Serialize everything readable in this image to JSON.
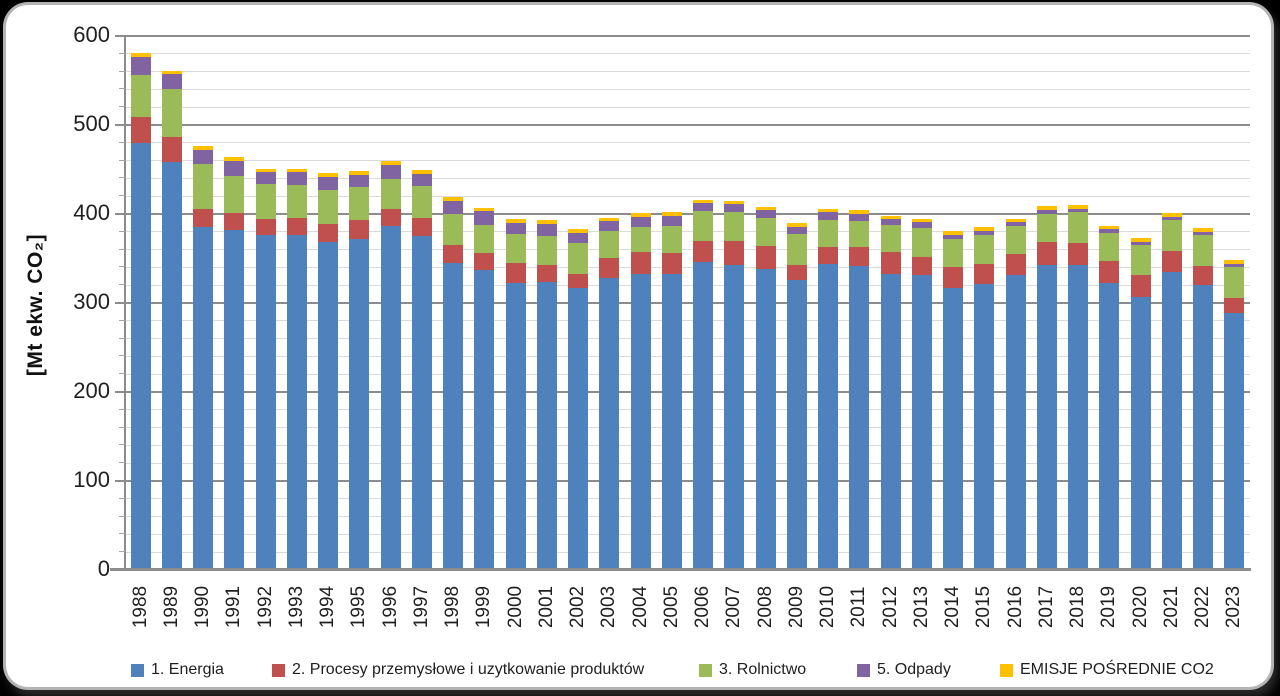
{
  "page": {
    "background_color": "#000000",
    "card_background_color": "#FFFFFF"
  },
  "chart_data": {
    "type": "bar",
    "subtype": "stacked-column",
    "title": "",
    "ylabel": "[Mt ekw. CO₂]",
    "xlabel": "",
    "ylim": [
      0,
      600
    ],
    "ytick_major": 100,
    "ytick_minor": 20,
    "grid": "on",
    "legend_position": "bottom",
    "y_tick_labels": [
      "0",
      "100",
      "200",
      "300",
      "400",
      "500",
      "600"
    ],
    "categories": [
      1988,
      1989,
      1990,
      1991,
      1992,
      1993,
      1994,
      1995,
      1996,
      1997,
      1998,
      1999,
      2000,
      2001,
      2002,
      2003,
      2004,
      2005,
      2006,
      2007,
      2008,
      2009,
      2010,
      2011,
      2012,
      2013,
      2014,
      2015,
      2016,
      2017,
      2018,
      2019,
      2020,
      2021,
      2022,
      2023
    ],
    "series": [
      {
        "name": "1. Energia",
        "key": "energia",
        "color": "#4F81BD",
        "values": [
          480,
          458,
          385,
          382,
          376,
          376,
          368,
          372,
          386,
          375,
          345,
          337,
          323,
          324,
          317,
          328,
          333,
          333,
          346,
          343,
          338,
          326,
          344,
          342,
          333,
          331,
          317,
          321,
          331,
          343,
          343,
          322,
          307,
          335,
          320,
          289
        ]
      },
      {
        "name": "2. Procesy przemysłowe i uzytkowanie produktów",
        "key": "procesy-przemyslowe",
        "color": "#C0504D",
        "values": [
          29,
          29,
          21,
          19,
          18,
          19,
          21,
          21,
          20,
          21,
          20,
          19,
          22,
          19,
          16,
          23,
          24,
          23,
          24,
          27,
          26,
          17,
          19,
          21,
          24,
          21,
          24,
          23,
          24,
          25,
          24,
          25,
          25,
          24,
          22,
          17
        ]
      },
      {
        "name": "3. Rolnictwo",
        "key": "rolnictwo",
        "color": "#9BBB59",
        "values": [
          47,
          53,
          50,
          42,
          40,
          38,
          38,
          37,
          33,
          36,
          35,
          32,
          32,
          32,
          34,
          30,
          28,
          30,
          33,
          32,
          32,
          35,
          30,
          29,
          31,
          32,
          31,
          32,
          32,
          32,
          35,
          32,
          33,
          34,
          34,
          35
        ]
      },
      {
        "name": "5. Odpady",
        "key": "odpady",
        "color": "#8064A2",
        "values": [
          21,
          17,
          16,
          17,
          13,
          14,
          15,
          14,
          16,
          13,
          15,
          15,
          13,
          14,
          12,
          11,
          12,
          12,
          9,
          9,
          8,
          8,
          9,
          8,
          6,
          7,
          5,
          5,
          4,
          5,
          4,
          4,
          4,
          4,
          4,
          3
        ]
      },
      {
        "name": "EMISJE POŚREDNIE CO2",
        "key": "emisje-posrednie-co2",
        "color": "#FFC000",
        "values": [
          4,
          4,
          4,
          4,
          4,
          4,
          4,
          4,
          5,
          5,
          4,
          4,
          4,
          4,
          4,
          4,
          4,
          4,
          4,
          4,
          4,
          4,
          4,
          4,
          4,
          4,
          4,
          4,
          4,
          4,
          4,
          4,
          4,
          4,
          4,
          4
        ]
      }
    ]
  }
}
